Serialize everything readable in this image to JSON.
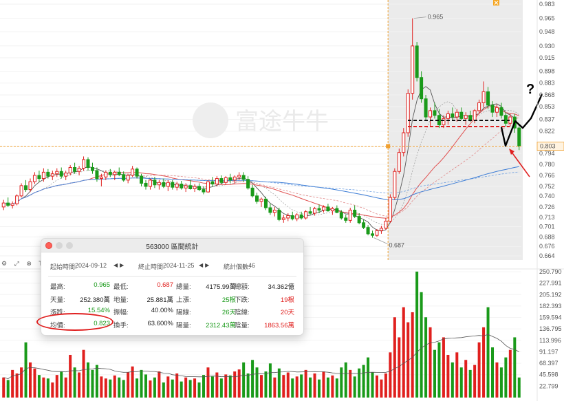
{
  "watermark": "富途牛牛",
  "price_axis": [
    "0.983",
    "0.965",
    "0.948",
    "0.930",
    "0.915",
    "0.898",
    "0.883",
    "0.868",
    "0.853",
    "0.837",
    "0.822",
    "0.803",
    "0.794",
    "0.780",
    "0.766",
    "0.752",
    "0.740",
    "0.726",
    "0.713",
    "0.701",
    "0.688",
    "0.676",
    "0.664"
  ],
  "volume_axis": [
    "250.790",
    "227.991",
    "205.192",
    "182.393",
    "159.594",
    "136.795",
    "113.996",
    "91.197",
    "68.397",
    "45.598",
    "22.799"
  ],
  "high_label": "0.965",
  "low_label": "0.687",
  "current_price_label": "0.803",
  "question_mark": "?",
  "toolbar": {
    "icons": [
      "gear-icon",
      "expand-icon",
      "close-icon"
    ],
    "tail": "T"
  },
  "stats": {
    "title": "563000 區間統計",
    "start_label": "起始時間:",
    "start_value": "2024-09-12",
    "end_label": "終止時間:",
    "end_value": "2024-11-25",
    "count_label": "統計個數:",
    "count_value": "46",
    "rows": [
      [
        [
          "最高:",
          "0.965",
          "g"
        ],
        [
          "最低:",
          "0.687",
          "r"
        ],
        [
          "總量:",
          "4175.99萬",
          "k"
        ],
        [
          "總額:",
          "34.362億",
          "k"
        ]
      ],
      [
        [
          "天量:",
          "252.380萬",
          "k"
        ],
        [
          "地量:",
          "25.881萬",
          "k"
        ],
        [
          "上漲:",
          "25根",
          "g"
        ],
        [
          "下跌:",
          "19根",
          "r"
        ]
      ],
      [
        [
          "漲跌:",
          "15.54%",
          "g"
        ],
        [
          "振幅:",
          "40.00%",
          "k"
        ],
        [
          "陽線:",
          "26天",
          "g"
        ],
        [
          "陰線:",
          "20天",
          "r"
        ]
      ],
      [
        [
          "均價:",
          "0.823",
          "g"
        ],
        [
          "換手:",
          "63.600%",
          "k"
        ],
        [
          "陽量:",
          "2312.43萬",
          "g"
        ],
        [
          "陰量:",
          "1863.56萬",
          "r"
        ]
      ]
    ]
  },
  "colors": {
    "up": "#e0201e",
    "down": "#1a9a1a",
    "ma_short": "#555555",
    "ma_mid": "#e05050",
    "ma_long": "#3a7bd5",
    "ma_long2": "#6fa0e0",
    "selection": "#e8e8e8",
    "price_line": "#f0a030"
  },
  "chart_data": {
    "type": "candlestick",
    "y_range": [
      0.664,
      0.983
    ],
    "volume_range": [
      0,
      250.79
    ],
    "highlight_range": [
      0.687,
      0.965
    ],
    "reference_price": 0.803,
    "candles": [
      [
        0.726,
        0.735,
        0.722,
        0.731
      ],
      [
        0.731,
        0.738,
        0.726,
        0.728
      ],
      [
        0.728,
        0.733,
        0.724,
        0.73
      ],
      [
        0.73,
        0.742,
        0.728,
        0.74
      ],
      [
        0.74,
        0.756,
        0.738,
        0.753
      ],
      [
        0.753,
        0.76,
        0.745,
        0.748
      ],
      [
        0.748,
        0.762,
        0.745,
        0.758
      ],
      [
        0.758,
        0.77,
        0.755,
        0.766
      ],
      [
        0.766,
        0.772,
        0.758,
        0.762
      ],
      [
        0.762,
        0.775,
        0.758,
        0.77
      ],
      [
        0.77,
        0.774,
        0.762,
        0.765
      ],
      [
        0.765,
        0.772,
        0.76,
        0.768
      ],
      [
        0.768,
        0.775,
        0.764,
        0.771
      ],
      [
        0.771,
        0.776,
        0.762,
        0.765
      ],
      [
        0.765,
        0.772,
        0.76,
        0.769
      ],
      [
        0.769,
        0.779,
        0.766,
        0.776
      ],
      [
        0.776,
        0.782,
        0.768,
        0.771
      ],
      [
        0.771,
        0.778,
        0.766,
        0.775
      ],
      [
        0.775,
        0.79,
        0.772,
        0.786
      ],
      [
        0.786,
        0.789,
        0.772,
        0.776
      ],
      [
        0.776,
        0.782,
        0.768,
        0.772
      ],
      [
        0.772,
        0.776,
        0.758,
        0.762
      ],
      [
        0.762,
        0.768,
        0.752,
        0.764
      ],
      [
        0.764,
        0.772,
        0.76,
        0.77
      ],
      [
        0.77,
        0.774,
        0.764,
        0.767
      ],
      [
        0.767,
        0.772,
        0.76,
        0.77
      ],
      [
        0.77,
        0.776,
        0.765,
        0.767
      ],
      [
        0.767,
        0.771,
        0.758,
        0.76
      ],
      [
        0.76,
        0.768,
        0.756,
        0.766
      ],
      [
        0.766,
        0.778,
        0.764,
        0.774
      ],
      [
        0.774,
        0.776,
        0.762,
        0.765
      ],
      [
        0.765,
        0.768,
        0.752,
        0.756
      ],
      [
        0.756,
        0.76,
        0.748,
        0.752
      ],
      [
        0.752,
        0.762,
        0.748,
        0.76
      ],
      [
        0.76,
        0.764,
        0.75,
        0.754
      ],
      [
        0.754,
        0.76,
        0.748,
        0.757
      ],
      [
        0.757,
        0.762,
        0.75,
        0.752
      ],
      [
        0.752,
        0.76,
        0.746,
        0.757
      ],
      [
        0.757,
        0.76,
        0.748,
        0.751
      ],
      [
        0.751,
        0.758,
        0.747,
        0.755
      ],
      [
        0.755,
        0.759,
        0.748,
        0.75
      ],
      [
        0.75,
        0.756,
        0.745,
        0.753
      ],
      [
        0.753,
        0.76,
        0.748,
        0.749
      ],
      [
        0.749,
        0.755,
        0.745,
        0.752
      ],
      [
        0.752,
        0.756,
        0.746,
        0.748
      ],
      [
        0.748,
        0.752,
        0.742,
        0.745
      ],
      [
        0.745,
        0.76,
        0.744,
        0.758
      ],
      [
        0.758,
        0.764,
        0.752,
        0.755
      ],
      [
        0.755,
        0.765,
        0.752,
        0.762
      ],
      [
        0.762,
        0.766,
        0.755,
        0.757
      ],
      [
        0.757,
        0.765,
        0.754,
        0.763
      ],
      [
        0.763,
        0.768,
        0.756,
        0.76
      ],
      [
        0.76,
        0.766,
        0.755,
        0.764
      ],
      [
        0.764,
        0.77,
        0.76,
        0.766
      ],
      [
        0.766,
        0.77,
        0.758,
        0.761
      ],
      [
        0.761,
        0.765,
        0.748,
        0.75
      ],
      [
        0.75,
        0.754,
        0.738,
        0.74
      ],
      [
        0.74,
        0.744,
        0.73,
        0.733
      ],
      [
        0.733,
        0.738,
        0.726,
        0.736
      ],
      [
        0.736,
        0.739,
        0.722,
        0.725
      ],
      [
        0.725,
        0.73,
        0.716,
        0.719
      ],
      [
        0.719,
        0.726,
        0.714,
        0.722
      ],
      [
        0.722,
        0.725,
        0.708,
        0.71
      ],
      [
        0.71,
        0.716,
        0.706,
        0.712
      ],
      [
        0.712,
        0.718,
        0.708,
        0.715
      ],
      [
        0.715,
        0.72,
        0.709,
        0.711
      ],
      [
        0.711,
        0.718,
        0.708,
        0.716
      ],
      [
        0.716,
        0.72,
        0.71,
        0.712
      ],
      [
        0.712,
        0.722,
        0.71,
        0.72
      ],
      [
        0.72,
        0.726,
        0.716,
        0.718
      ],
      [
        0.718,
        0.726,
        0.715,
        0.724
      ],
      [
        0.724,
        0.729,
        0.718,
        0.722
      ],
      [
        0.722,
        0.728,
        0.719,
        0.726
      ],
      [
        0.726,
        0.73,
        0.72,
        0.721
      ],
      [
        0.721,
        0.726,
        0.716,
        0.724
      ],
      [
        0.724,
        0.728,
        0.718,
        0.719
      ],
      [
        0.719,
        0.722,
        0.71,
        0.712
      ],
      [
        0.712,
        0.716,
        0.706,
        0.709
      ],
      [
        0.709,
        0.725,
        0.706,
        0.722
      ],
      [
        0.722,
        0.728,
        0.712,
        0.714
      ],
      [
        0.714,
        0.718,
        0.704,
        0.706
      ],
      [
        0.706,
        0.71,
        0.698,
        0.7
      ],
      [
        0.7,
        0.703,
        0.69,
        0.692
      ],
      [
        0.692,
        0.696,
        0.687,
        0.69
      ],
      [
        0.69,
        0.698,
        0.688,
        0.696
      ],
      [
        0.696,
        0.702,
        0.692,
        0.699
      ],
      [
        0.699,
        0.712,
        0.697,
        0.708
      ],
      [
        0.708,
        0.742,
        0.706,
        0.738
      ],
      [
        0.738,
        0.775,
        0.735,
        0.771
      ],
      [
        0.771,
        0.8,
        0.768,
        0.795
      ],
      [
        0.795,
        0.826,
        0.79,
        0.82
      ],
      [
        0.82,
        0.875,
        0.815,
        0.87
      ],
      [
        0.87,
        0.965,
        0.862,
        0.93
      ],
      [
        0.93,
        0.935,
        0.885,
        0.89
      ],
      [
        0.89,
        0.898,
        0.858,
        0.863
      ],
      [
        0.863,
        0.868,
        0.835,
        0.84
      ],
      [
        0.84,
        0.852,
        0.828,
        0.848
      ],
      [
        0.848,
        0.858,
        0.838,
        0.842
      ],
      [
        0.842,
        0.85,
        0.826,
        0.83
      ],
      [
        0.83,
        0.842,
        0.826,
        0.838
      ],
      [
        0.838,
        0.848,
        0.83,
        0.844
      ],
      [
        0.844,
        0.852,
        0.836,
        0.84
      ],
      [
        0.84,
        0.85,
        0.834,
        0.846
      ],
      [
        0.846,
        0.852,
        0.836,
        0.838
      ],
      [
        0.838,
        0.846,
        0.83,
        0.842
      ],
      [
        0.842,
        0.848,
        0.834,
        0.836
      ],
      [
        0.836,
        0.85,
        0.832,
        0.848
      ],
      [
        0.848,
        0.862,
        0.845,
        0.858
      ],
      [
        0.858,
        0.885,
        0.852,
        0.872
      ],
      [
        0.872,
        0.878,
        0.85,
        0.855
      ],
      [
        0.855,
        0.86,
        0.84,
        0.846
      ],
      [
        0.846,
        0.856,
        0.84,
        0.852
      ],
      [
        0.852,
        0.858,
        0.838,
        0.842
      ],
      [
        0.842,
        0.846,
        0.828,
        0.832
      ],
      [
        0.832,
        0.844,
        0.828,
        0.84
      ],
      [
        0.84,
        0.844,
        0.82,
        0.826
      ],
      [
        0.826,
        0.828,
        0.798,
        0.803
      ]
    ],
    "volumes": [
      40,
      35,
      55,
      48,
      60,
      110,
      70,
      58,
      45,
      40,
      38,
      30,
      45,
      52,
      40,
      85,
      60,
      50,
      95,
      70,
      55,
      65,
      42,
      38,
      36,
      44,
      40,
      35,
      50,
      62,
      38,
      55,
      46,
      34,
      40,
      52,
      30,
      42,
      36,
      48,
      32,
      40,
      35,
      38,
      30,
      45,
      60,
      42,
      50,
      38,
      46,
      44,
      52,
      56,
      70,
      48,
      75,
      60,
      45,
      52,
      68,
      40,
      58,
      45,
      50,
      38,
      42,
      46,
      55,
      40,
      48,
      36,
      52,
      40,
      44,
      38,
      60,
      70,
      55,
      42,
      58,
      65,
      80,
      50,
      44,
      36,
      48,
      90,
      160,
      120,
      180,
      150,
      170,
      251,
      210,
      160,
      140,
      95,
      110,
      120,
      85,
      70,
      90,
      60,
      75,
      55,
      65,
      110,
      140,
      180,
      100,
      70,
      60,
      80,
      95,
      120,
      40
    ]
  }
}
